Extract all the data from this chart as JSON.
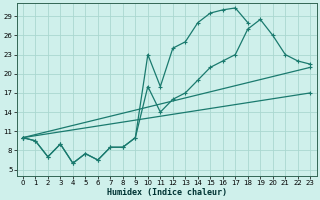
{
  "xlabel": "Humidex (Indice chaleur)",
  "background_color": "#cff0eb",
  "grid_color": "#aad8d0",
  "line_color": "#1a7a6e",
  "xlim": [
    -0.5,
    23.5
  ],
  "ylim": [
    4,
    31
  ],
  "xticks": [
    0,
    1,
    2,
    3,
    4,
    5,
    6,
    7,
    8,
    9,
    10,
    11,
    12,
    13,
    14,
    15,
    16,
    17,
    18,
    19,
    20,
    21,
    22,
    23
  ],
  "yticks": [
    5,
    8,
    11,
    14,
    17,
    20,
    23,
    26,
    29
  ],
  "line1_x": [
    0,
    1,
    2,
    3,
    4,
    5,
    6,
    7,
    8,
    9,
    10,
    11,
    12,
    13,
    14,
    15,
    16,
    17,
    18,
    19,
    20,
    21,
    22,
    23
  ],
  "line1_y": [
    10,
    9.5,
    7,
    9,
    6,
    7.5,
    6.5,
    8.5,
    8.5,
    10,
    23,
    18,
    24,
    25,
    28,
    29.5,
    30,
    30.3,
    28,
    null,
    null,
    null,
    null,
    null
  ],
  "line2_x": [
    0,
    1,
    2,
    3,
    4,
    5,
    6,
    7,
    8,
    9,
    10,
    11,
    12,
    13,
    14,
    15,
    16,
    17,
    18,
    19,
    20,
    21,
    22,
    23
  ],
  "line2_y": [
    10,
    9.5,
    7,
    9,
    6,
    7.5,
    6.5,
    8.5,
    8.5,
    10,
    18,
    14,
    16,
    17,
    19,
    21,
    22,
    23,
    27,
    28.5,
    26,
    23,
    22,
    21.5
  ],
  "line3_x": [
    0,
    23
  ],
  "line3_y": [
    10,
    21
  ],
  "line4_x": [
    0,
    23
  ],
  "line4_y": [
    10,
    17
  ]
}
